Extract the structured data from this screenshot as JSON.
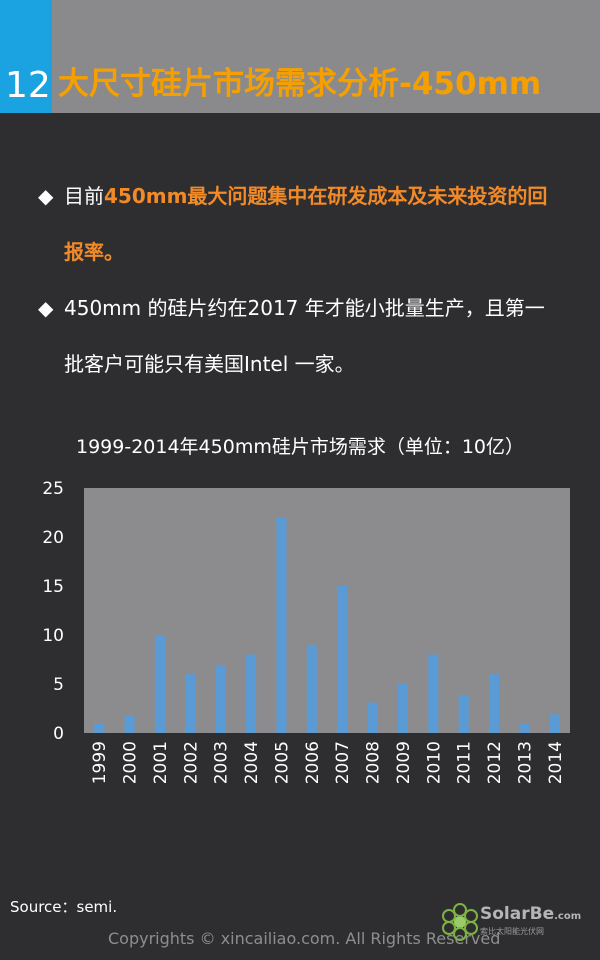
{
  "header": {
    "number": "12",
    "title": "大尺寸硅片市场需求分析-450mm"
  },
  "bullets": [
    {
      "marker": "◆",
      "prefix": "目前",
      "highlight": "450mm最大问题集中在研发成本及未来投资的回报率。",
      "line1_prefix": "目前",
      "line1_highlight": "450mm最大问题集中在研发成本及未来投资的回",
      "line2_highlight": "报率。"
    },
    {
      "marker": "◆",
      "line1": "450mm 的硅片约在2017 年才能小批量生产，且第一",
      "line2": "批客户可能只有美国Intel 一家。"
    }
  ],
  "chart_data": {
    "type": "bar",
    "title": "1999-2014年450mm硅片市场需求（单位：10亿）",
    "categories": [
      "1999",
      "2000",
      "2001",
      "2002",
      "2003",
      "2004",
      "2005",
      "2006",
      "2007",
      "2008",
      "2009",
      "2010",
      "2011",
      "2012",
      "2013",
      "2014"
    ],
    "values": [
      1,
      1.8,
      10,
      6,
      6.9,
      8,
      22,
      9,
      15,
      3.1,
      5,
      8,
      3.9,
      6,
      0.9,
      1.9
    ],
    "ylim": [
      0,
      25
    ],
    "yticks": [
      "0",
      "5",
      "10",
      "15",
      "20",
      "25"
    ],
    "bar_color": "#5b9bd5",
    "plot_bg": "#8c8c8e",
    "grid": false,
    "xlabel": "",
    "ylabel": ""
  },
  "footer": {
    "source": "Source：semi.",
    "copyright": "Copyrights © xincailiao.com. All Rights Reserved",
    "logo_text": "SolarBe",
    "logo_domain": ".com",
    "logo_sub": "索比太阳能光伏网"
  }
}
